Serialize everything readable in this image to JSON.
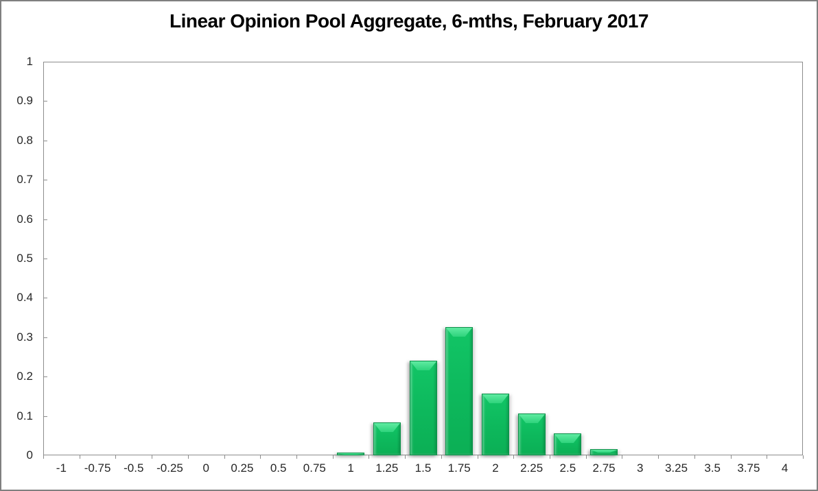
{
  "window": {
    "background_color": "#ffffff",
    "border_color": "#7f7f7f"
  },
  "chart_data": {
    "type": "bar",
    "title": "Linear Opinion Pool Aggregate, 6-mths, February 2017",
    "xlabel": "",
    "ylabel": "",
    "categories": [
      "-1",
      "-0.75",
      "-0.5",
      "-0.25",
      "0",
      "0.25",
      "0.5",
      "0.75",
      "1",
      "1.25",
      "1.5",
      "1.75",
      "2",
      "2.25",
      "2.5",
      "2.75",
      "3",
      "3.25",
      "3.5",
      "3.75",
      "4"
    ],
    "values": [
      0,
      0,
      0,
      0,
      0,
      0,
      0,
      0,
      0.007,
      0.084,
      0.241,
      0.326,
      0.157,
      0.106,
      0.056,
      0.016,
      0,
      0,
      0,
      0,
      0
    ],
    "ylim": [
      0,
      1
    ],
    "ytick_step": 0.1,
    "yticks": [
      "0",
      "0.1",
      "0.2",
      "0.3",
      "0.4",
      "0.5",
      "0.6",
      "0.7",
      "0.8",
      "0.9",
      "1"
    ],
    "grid": false,
    "legend": null,
    "colors": {
      "bar_fill": "#0DB85C",
      "bar_highlight": "#5FEBA1",
      "bar_border": "#0A9148",
      "axis_line": "#8C8C8C",
      "tick_label": "#262626",
      "title": "#000000"
    }
  }
}
